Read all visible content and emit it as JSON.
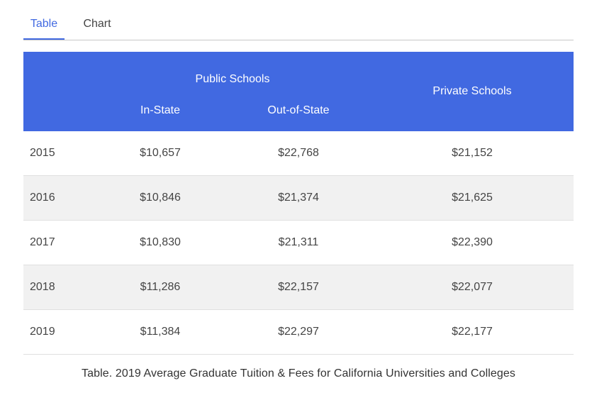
{
  "tabs": [
    {
      "label": "Table",
      "active": true
    },
    {
      "label": "Chart",
      "active": false
    }
  ],
  "table": {
    "group_header": "Public Schools",
    "private_header": "Private Schools",
    "sub_headers": {
      "in_state": "In-State",
      "out_of_state": "Out-of-State"
    },
    "rows": [
      {
        "year": "2015",
        "in_state": "$10,657",
        "out_of_state": "$22,768",
        "private": "$21,152"
      },
      {
        "year": "2016",
        "in_state": "$10,846",
        "out_of_state": "$21,374",
        "private": "$21,625"
      },
      {
        "year": "2017",
        "in_state": "$10,830",
        "out_of_state": "$21,311",
        "private": "$22,390"
      },
      {
        "year": "2018",
        "in_state": "$11,286",
        "out_of_state": "$22,157",
        "private": "$22,077"
      },
      {
        "year": "2019",
        "in_state": "$11,384",
        "out_of_state": "$22,297",
        "private": "$22,177"
      }
    ]
  },
  "caption": "Table. 2019 Average Graduate Tuition & Fees for California Universities and Colleges",
  "colors": {
    "accent": "#4169e1",
    "stripe": "#f1f1f1"
  }
}
